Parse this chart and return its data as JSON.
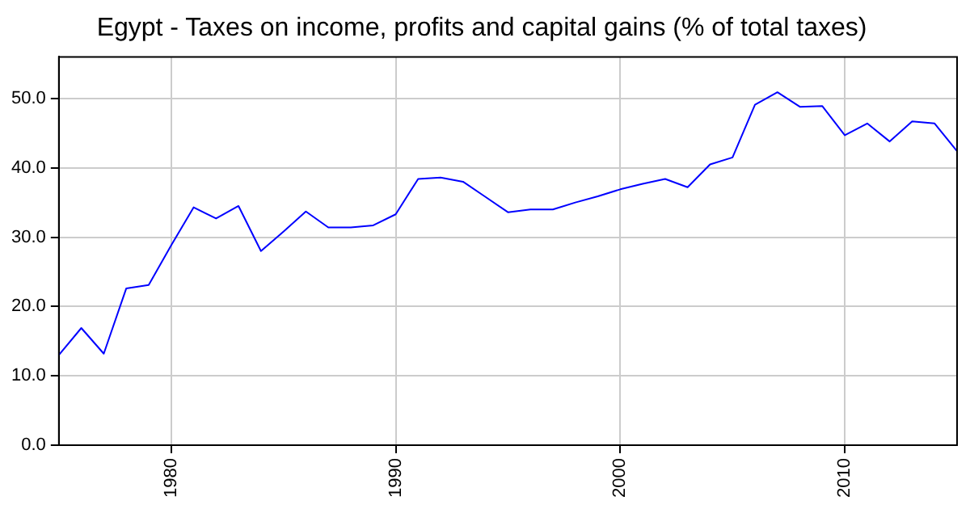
{
  "chart_data": {
    "type": "line",
    "title": "Egypt - Taxes on income, profits and capital gains (% of total taxes)",
    "x": [
      1975,
      1976,
      1977,
      1978,
      1979,
      1980,
      1981,
      1982,
      1983,
      1984,
      1985,
      1986,
      1987,
      1988,
      1989,
      1990,
      1991,
      1992,
      1993,
      1994,
      1995,
      1996,
      1997,
      1998,
      1999,
      2000,
      2001,
      2002,
      2003,
      2004,
      2005,
      2006,
      2007,
      2008,
      2009,
      2010,
      2011,
      2012,
      2013,
      2014,
      2015
    ],
    "series": [
      {
        "color": "#0000ff",
        "values": [
          13.0,
          16.9,
          13.2,
          22.6,
          23.1,
          28.8,
          34.3,
          32.7,
          34.5,
          28.0,
          30.8,
          33.7,
          31.4,
          31.4,
          31.7,
          33.3,
          38.4,
          38.6,
          38.0,
          35.8,
          33.6,
          34.0,
          34.0,
          35.0,
          35.9,
          36.9,
          37.7,
          38.4,
          37.2,
          40.5,
          41.5,
          49.1,
          50.9,
          48.8,
          48.9,
          44.7,
          46.4,
          43.8,
          46.7,
          46.4,
          42.4
        ]
      }
    ],
    "xlim": [
      1975,
      2015
    ],
    "xticks": [
      1980,
      1990,
      2000,
      2010
    ],
    "ylim": [
      0,
      56
    ],
    "yticks": [
      {
        "value": 0,
        "label": "0.0"
      },
      {
        "value": 10,
        "label": "10.0"
      },
      {
        "value": 20,
        "label": "20.0"
      },
      {
        "value": 30,
        "label": "30.0"
      },
      {
        "value": 40,
        "label": "40.0"
      },
      {
        "value": 50,
        "label": "50.0"
      }
    ],
    "grid": true,
    "legend": false,
    "marker": "none",
    "line_style": "solid"
  }
}
